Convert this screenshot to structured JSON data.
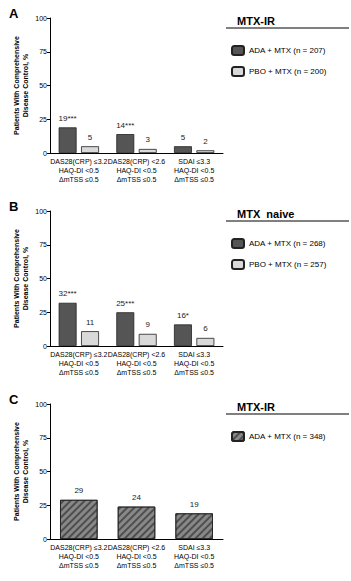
{
  "chart_data": [
    {
      "type": "bar",
      "title": "A",
      "legend_title": "MTX-IR",
      "ylabel": "Patients With Comprehensive\nDisease Control, %",
      "categories": [
        "DAS28(CRP) ≤3.2\nHAQ-DI <0.5\nΔmTSS ≤0.5",
        "DAS28(CRP) <2.6\nHAQ-DI <0.5\nΔmTSS ≤0.5",
        "SDAI ≤3.3\nHAQ-DI <0.5\nΔmTSS ≤0.5"
      ],
      "series": [
        {
          "name": "ADA + MTX (n = 207)",
          "color": "#555555",
          "values": [
            19,
            14,
            5
          ],
          "value_labels": [
            "19***",
            "14***",
            "5"
          ]
        },
        {
          "name": "PBO + MTX (n = 200)",
          "color": "#d9d9d9",
          "values": [
            5,
            3,
            2
          ],
          "value_labels": [
            "5",
            "3",
            "2"
          ]
        }
      ],
      "ylim": [
        0,
        100
      ],
      "yticks": [
        0,
        25,
        50,
        75,
        100
      ],
      "grid": false,
      "data_labels": true,
      "legend": "right"
    },
    {
      "type": "bar",
      "title": "B",
      "legend_title": "MTX  naive",
      "ylabel": "Patients With Comprehensive\nDisease Control, %",
      "categories": [
        "DAS28(CRP) ≤3.2\nHAQ-DI <0.5\nΔmTSS ≤0.5",
        "DAS28(CRP) <2.6\nHAQ-DI <0.5\nΔmTSS ≤0.5",
        "SDAI ≤3.3\nHAQ-DI <0.5\nΔmTSS ≤0.5"
      ],
      "series": [
        {
          "name": "ADA + MTX (n = 268)",
          "color": "#555555",
          "values": [
            32,
            25,
            16
          ],
          "value_labels": [
            "32***",
            "25***",
            "16*"
          ]
        },
        {
          "name": "PBO + MTX (n = 257)",
          "color": "#d9d9d9",
          "values": [
            11,
            9,
            6
          ],
          "value_labels": [
            "11",
            "9",
            "6"
          ]
        }
      ],
      "ylim": [
        0,
        100
      ],
      "yticks": [
        0,
        25,
        50,
        75,
        100
      ],
      "grid": false,
      "data_labels": true,
      "legend": "right"
    },
    {
      "type": "bar",
      "title": "C",
      "legend_title": "MTX-IR",
      "ylabel": "Patients With Comprehensive\nDisease Control, %",
      "categories": [
        "DAS28(CRP) ≤3.2\nHAQ-DI <0.5\nΔmTSS ≤0.5",
        "DAS28(CRP) <2.6\nHAQ-DI <0.5\nΔmTSS ≤0.5",
        "SDAI ≤3.3\nHAQ-DI <0.5\nΔmTSS ≤0.5"
      ],
      "series": [
        {
          "name": "ADA + MTX (n = 348)",
          "color": "#888888",
          "values": [
            29,
            24,
            19
          ],
          "value_labels": [
            "29",
            "24",
            "19"
          ]
        }
      ],
      "ylim": [
        0,
        100
      ],
      "yticks": [
        0,
        25,
        50,
        75,
        100
      ],
      "grid": false,
      "data_labels": true,
      "legend": "right"
    }
  ]
}
